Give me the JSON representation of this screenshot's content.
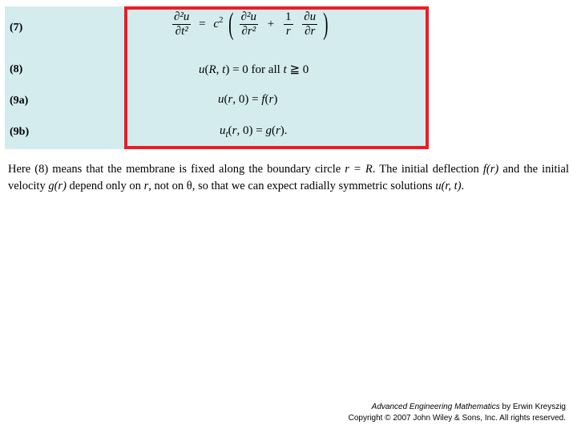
{
  "labels": {
    "eq7": "(7)",
    "eq8": "(8)",
    "eq9a": "(9a)",
    "eq9b": "(9b)"
  },
  "equations": {
    "eq7_lhs_num": "∂²u",
    "eq7_lhs_den": "∂t²",
    "eq7_c2": "c²",
    "eq7_t1_num": "∂²u",
    "eq7_t1_den": "∂r²",
    "eq7_plus": "+",
    "eq7_t2a_num": "1",
    "eq7_t2a_den": "r",
    "eq7_t2b_num": "∂u",
    "eq7_t2b_den": "∂r",
    "eq8": "u(R, t)  =  0  for all  t  ≧  0",
    "eq9a": "u(r, 0)   =   f(r)",
    "eq9b": "uₜ(r, 0)   =   g(r)."
  },
  "paragraph": {
    "p1a": "Here (8) means that the membrane is fixed along the boundary circle ",
    "p1b": "r = R",
    "p1c": ". The initial deflection ",
    "p1d": "f(r)",
    "p1e": " and the initial velocity ",
    "p1f": "g(r)",
    "p1g": " depend only on ",
    "p1h": "r",
    "p1i": ", not on θ, so that we can expect radially symmetric solutions ",
    "p1j": "u(r, t)",
    "p1k": "."
  },
  "footer": {
    "line1_book": "Advanced Engineering Mathematics",
    "line1_rest": " by Erwin Kreyszig",
    "line2": "Copyright ©  2007 John Wiley & Sons, Inc.  All rights reserved."
  },
  "colors": {
    "box_bg": "#d4ecee",
    "box_border": "#ed1c24",
    "text": "#000000",
    "page_bg": "#ffffff"
  }
}
